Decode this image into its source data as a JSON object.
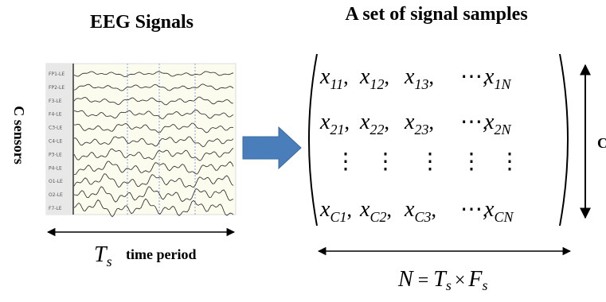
{
  "left_title": "EEG Signals",
  "right_title": "A set of signal samples",
  "y_label": "C sensors",
  "time": {
    "symbol": "T",
    "sub": "s",
    "label": "time period"
  },
  "channels": [
    "FP1-LE",
    "FP2-LE",
    "F3-LE",
    "F4-LE",
    "C3-LE",
    "C4-LE",
    "P3-LE",
    "P4-LE",
    "O1-LE",
    "O2-LE",
    "F7-LE"
  ],
  "matrix": {
    "separator": ",",
    "rows": [
      [
        {
          "var": "x",
          "sub": "11"
        },
        {
          "var": "x",
          "sub": "12"
        },
        {
          "var": "x",
          "sub": "13"
        },
        {
          "text": "⋯"
        },
        {
          "var": "x",
          "sub": "1N"
        }
      ],
      [
        {
          "var": "x",
          "sub": "21"
        },
        {
          "var": "x",
          "sub": "22"
        },
        {
          "var": "x",
          "sub": "23"
        },
        {
          "text": "⋯"
        },
        {
          "var": "x",
          "sub": "2N"
        }
      ],
      [
        {
          "text": "⋮"
        },
        {
          "text": "⋮"
        },
        {
          "text": "⋮"
        },
        {
          "text": "⋮"
        },
        {
          "text": "⋮"
        }
      ],
      [
        {
          "var": "x",
          "sub": "C1"
        },
        {
          "var": "x",
          "sub": "C2"
        },
        {
          "var": "x",
          "sub": "C3"
        },
        {
          "text": "⋯"
        },
        {
          "var": "x",
          "sub": "CN"
        }
      ]
    ]
  },
  "rows_label": "C",
  "formula": {
    "lhs": "N",
    "eq": "=",
    "t": "T",
    "t_sub": "s",
    "times": "×",
    "f": "F",
    "f_sub": "s"
  }
}
